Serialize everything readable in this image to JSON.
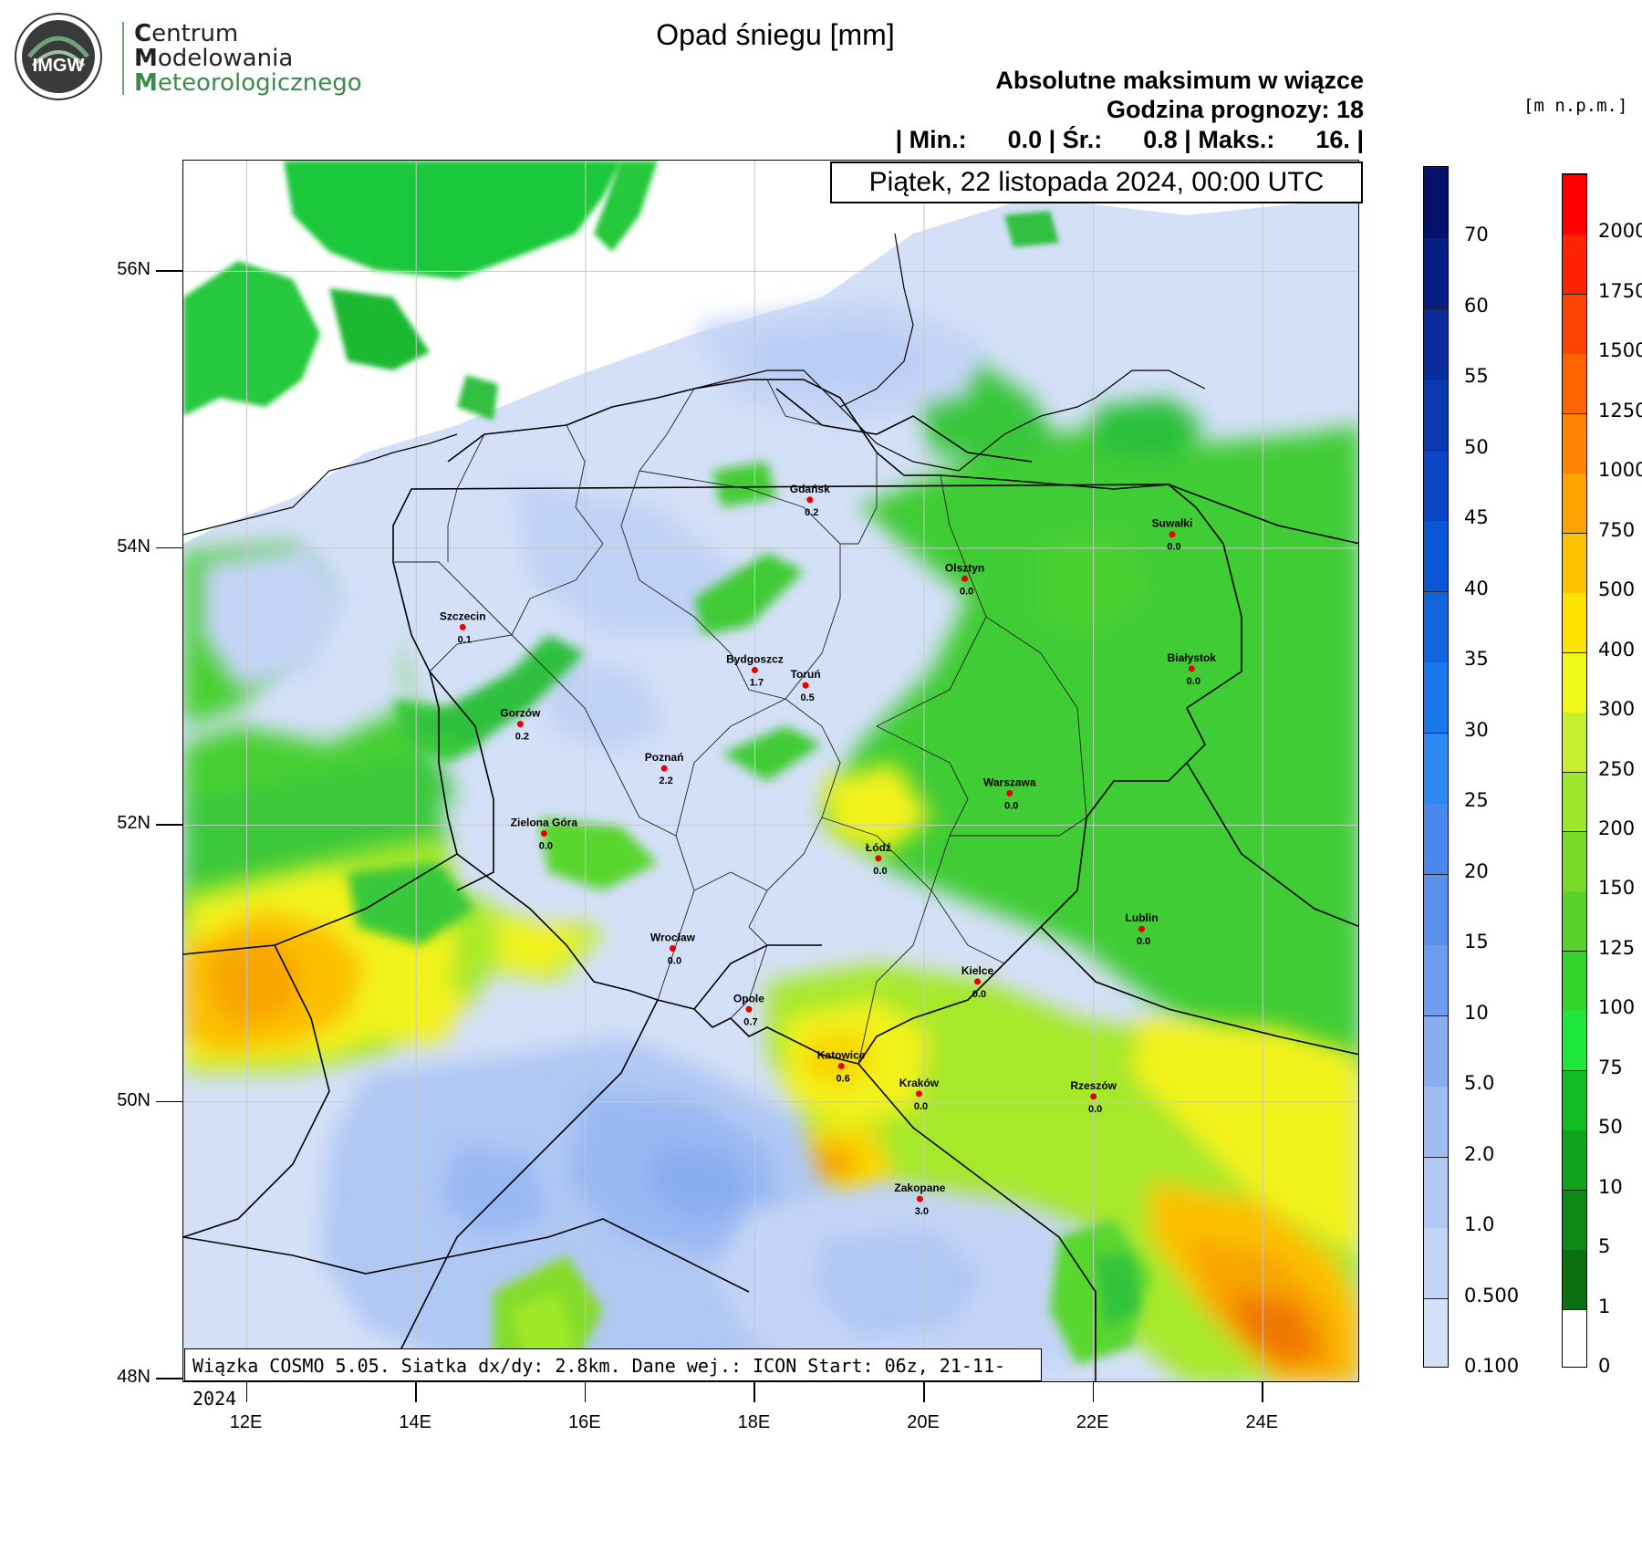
{
  "logo": {
    "badge_text": "IMGW",
    "lines": [
      {
        "initial": "C",
        "rest": "entrum"
      },
      {
        "initial": "M",
        "rest": "odelowania"
      },
      {
        "initial": "M",
        "rest": "eteorologicznego"
      }
    ]
  },
  "title": "Opad śniegu [mm]",
  "subtitle": "Absolutne maksimum w wiązce",
  "forecast_hour": "Godzina prognozy: 18",
  "stats": "| Min.:      0.0 | Śr.:      0.8 | Maks.:      16. |",
  "date": "Piątek, 22 listopada 2024, 00:00 UTC",
  "footer": "Wiązka COSMO 5.05. Siatka dx/dy: 2.8km. Dane wej.: ICON Start: 06z, 21-11-2024",
  "elevation_unit": "[m n.p.m.]",
  "lat_labels": [
    "56N",
    "54N",
    "52N",
    "50N",
    "48N"
  ],
  "lon_labels": [
    "12E",
    "14E",
    "16E",
    "18E",
    "20E",
    "22E",
    "24E"
  ],
  "snow_scale": {
    "labels": [
      "0.100",
      "0.500",
      "1.0",
      "2.0",
      "5.0",
      "10",
      "15",
      "20",
      "25",
      "30",
      "35",
      "40",
      "45",
      "50",
      "55",
      "60",
      "70"
    ],
    "colors": [
      "#d4e0f8",
      "#c4d4f6",
      "#b4c8f4",
      "#a0bcf2",
      "#88acf0",
      "#6e9cee",
      "#5a90ec",
      "#4a88ec",
      "#2e88f4",
      "#1a78ec",
      "#1064dc",
      "#0a56d4",
      "#0a46c4",
      "#0a38b0",
      "#082c9c",
      "#061e84",
      "#04106a"
    ]
  },
  "elevation_scale": {
    "labels": [
      "0",
      "1",
      "5",
      "10",
      "50",
      "75",
      "100",
      "125",
      "150",
      "200",
      "250",
      "300",
      "400",
      "500",
      "750",
      "1000",
      "1250",
      "1500",
      "1750",
      "2000"
    ],
    "colors": [
      "#ffffff",
      "#0a7010",
      "#0c8a14",
      "#10a41c",
      "#14bc24",
      "#1ee83c",
      "#34d42c",
      "#5ad22a",
      "#7ada2a",
      "#9ee82c",
      "#c8f030",
      "#f0f818",
      "#fce400",
      "#fcc400",
      "#fca400",
      "#fc8400",
      "#fc6400",
      "#fc4400",
      "#fc2400",
      "#fc0000"
    ]
  },
  "cities": [
    {
      "name": "Gdańsk",
      "value": "0.2",
      "lat": 54.35,
      "lon": 18.65
    },
    {
      "name": "Suwałki",
      "value": "0.0",
      "lat": 54.1,
      "lon": 22.93
    },
    {
      "name": "Olsztyn",
      "value": "0.0",
      "lat": 53.78,
      "lon": 20.48
    },
    {
      "name": "Szczecin",
      "value": "0.1",
      "lat": 53.43,
      "lon": 14.55
    },
    {
      "name": "Bydgoszcz",
      "value": "1.7",
      "lat": 53.12,
      "lon": 18.0
    },
    {
      "name": "Toruń",
      "value": "0.5",
      "lat": 53.01,
      "lon": 18.6
    },
    {
      "name": "Białystok",
      "value": "0.0",
      "lat": 53.13,
      "lon": 23.16
    },
    {
      "name": "Gorzów",
      "value": "0.2",
      "lat": 52.73,
      "lon": 15.23
    },
    {
      "name": "Poznań",
      "value": "2.2",
      "lat": 52.41,
      "lon": 16.93
    },
    {
      "name": "Warszawa",
      "value": "0.0",
      "lat": 52.23,
      "lon": 21.01
    },
    {
      "name": "Zielona Góra",
      "value": "0.0",
      "lat": 51.94,
      "lon": 15.51
    },
    {
      "name": "Łódź",
      "value": "0.0",
      "lat": 51.76,
      "lon": 19.46
    },
    {
      "name": "Lublin",
      "value": "0.0",
      "lat": 51.25,
      "lon": 22.57
    },
    {
      "name": "Wrocław",
      "value": "0.0",
      "lat": 51.11,
      "lon": 17.03
    },
    {
      "name": "Kielce",
      "value": "0.0",
      "lat": 50.87,
      "lon": 20.63
    },
    {
      "name": "Opole",
      "value": "0.7",
      "lat": 50.67,
      "lon": 17.93
    },
    {
      "name": "Katowice",
      "value": "0.6",
      "lat": 50.26,
      "lon": 19.02
    },
    {
      "name": "Kraków",
      "value": "0.0",
      "lat": 50.06,
      "lon": 19.94
    },
    {
      "name": "Rzeszów",
      "value": "0.0",
      "lat": 50.04,
      "lon": 22.0
    },
    {
      "name": "Zakopane",
      "value": "3.0",
      "lat": 49.3,
      "lon": 19.95
    }
  ]
}
